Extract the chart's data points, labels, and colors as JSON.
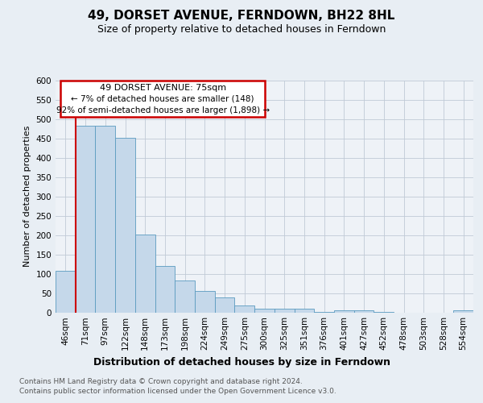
{
  "title": "49, DORSET AVENUE, FERNDOWN, BH22 8HL",
  "subtitle": "Size of property relative to detached houses in Ferndown",
  "xlabel": "Distribution of detached houses by size in Ferndown",
  "ylabel": "Number of detached properties",
  "footnote1": "Contains HM Land Registry data © Crown copyright and database right 2024.",
  "footnote2": "Contains public sector information licensed under the Open Government Licence v3.0.",
  "annotation_title": "49 DORSET AVENUE: 75sqm",
  "annotation_line2": "← 7% of detached houses are smaller (148)",
  "annotation_line3": "92% of semi-detached houses are larger (1,898) →",
  "bar_color": "#c5d8ea",
  "bar_edge_color": "#5a9abf",
  "highlight_line_color": "#cc0000",
  "annotation_box_edge_color": "#cc0000",
  "categories": [
    "46sqm",
    "71sqm",
    "97sqm",
    "122sqm",
    "148sqm",
    "173sqm",
    "198sqm",
    "224sqm",
    "249sqm",
    "275sqm",
    "300sqm",
    "325sqm",
    "351sqm",
    "376sqm",
    "401sqm",
    "427sqm",
    "452sqm",
    "478sqm",
    "503sqm",
    "528sqm",
    "554sqm"
  ],
  "values": [
    107,
    483,
    483,
    452,
    202,
    120,
    83,
    55,
    38,
    17,
    10,
    10,
    10,
    1,
    6,
    5,
    1,
    0,
    0,
    0,
    5
  ],
  "highlight_index": 1,
  "ylim": [
    0,
    600
  ],
  "yticks": [
    0,
    50,
    100,
    150,
    200,
    250,
    300,
    350,
    400,
    450,
    500,
    550,
    600
  ],
  "background_color": "#e8eef4",
  "plot_bg_color": "#eef2f7",
  "grid_color": "#c0cad6",
  "title_fontsize": 11,
  "subtitle_fontsize": 9,
  "xlabel_fontsize": 9,
  "ylabel_fontsize": 8,
  "tick_fontsize": 7.5,
  "footnote_fontsize": 6.5,
  "annotation_fontsize": 8
}
